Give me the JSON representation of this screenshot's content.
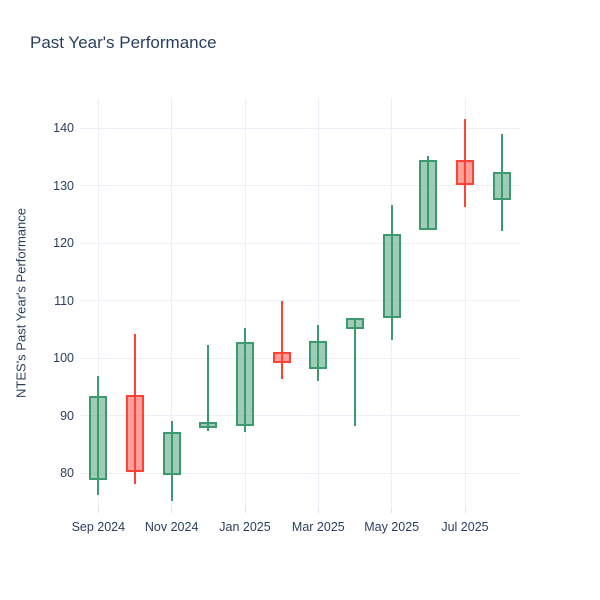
{
  "chart_data": {
    "type": "candlestick",
    "title": "Past Year's Performance",
    "xlabel": "",
    "ylabel": "NTES's Past Year's Performance",
    "ylim": [
      74,
      145.3
    ],
    "yticks": [
      80,
      90,
      100,
      110,
      120,
      130,
      140
    ],
    "xtick_labels": [
      "Sep 2024",
      "Nov 2024",
      "Jan 2025",
      "Mar 2025",
      "May 2025",
      "Jul 2025"
    ],
    "xtick_indices": [
      0,
      2,
      4,
      6,
      8,
      10
    ],
    "grid": true,
    "legend": "none",
    "categories": [
      "Sep 2024",
      "Oct 2024",
      "Nov 2024",
      "Dec 2024",
      "Jan 2025",
      "Feb 2025",
      "Mar 2025",
      "Apr 2025",
      "May 2025",
      "Jun 2025",
      "Jul 2025",
      "Aug 2025"
    ],
    "series": [
      {
        "month": "Sep 2024",
        "open": 78.8,
        "high": 97.0,
        "low": 76.2,
        "close": 93.4,
        "direction": "up"
      },
      {
        "month": "Oct 2024",
        "open": 93.6,
        "high": 104.2,
        "low": 78.2,
        "close": 80.2,
        "direction": "down"
      },
      {
        "month": "Nov 2024",
        "open": 79.8,
        "high": 89.2,
        "low": 75.2,
        "close": 87.3,
        "direction": "up"
      },
      {
        "month": "Dec 2024",
        "open": 87.9,
        "high": 102.4,
        "low": 87.4,
        "close": 89.0,
        "direction": "up"
      },
      {
        "month": "Jan 2025",
        "open": 88.3,
        "high": 105.3,
        "low": 87.3,
        "close": 102.8,
        "direction": "up"
      },
      {
        "month": "Feb 2025",
        "open": 101.1,
        "high": 110.0,
        "low": 96.4,
        "close": 99.3,
        "direction": "down"
      },
      {
        "month": "Mar 2025",
        "open": 98.2,
        "high": 105.9,
        "low": 96.0,
        "close": 103.0,
        "direction": "up"
      },
      {
        "month": "Apr 2025",
        "open": 105.1,
        "high": 107.0,
        "low": 88.3,
        "close": 107.0,
        "direction": "up"
      },
      {
        "month": "May 2025",
        "open": 107.0,
        "high": 126.7,
        "low": 103.2,
        "close": 121.7,
        "direction": "up"
      },
      {
        "month": "Jun 2025",
        "open": 122.3,
        "high": 135.3,
        "low": 122.3,
        "close": 134.6,
        "direction": "up"
      },
      {
        "month": "Jul 2025",
        "open": 134.6,
        "high": 141.6,
        "low": 126.4,
        "close": 130.1,
        "direction": "down"
      },
      {
        "month": "Aug 2025",
        "open": 127.6,
        "high": 139.1,
        "low": 122.1,
        "close": 132.5,
        "direction": "up"
      }
    ],
    "colors": {
      "increasing_line": "#3D9970",
      "increasing_fill": "rgba(61,153,112,0.5)",
      "decreasing_line": "#FF4136",
      "decreasing_fill": "rgba(255,65,54,0.5)",
      "grid": "#EBF0F8",
      "tick": "#DCE1EA",
      "text": "#2a3f5f",
      "background": "#ffffff"
    }
  }
}
